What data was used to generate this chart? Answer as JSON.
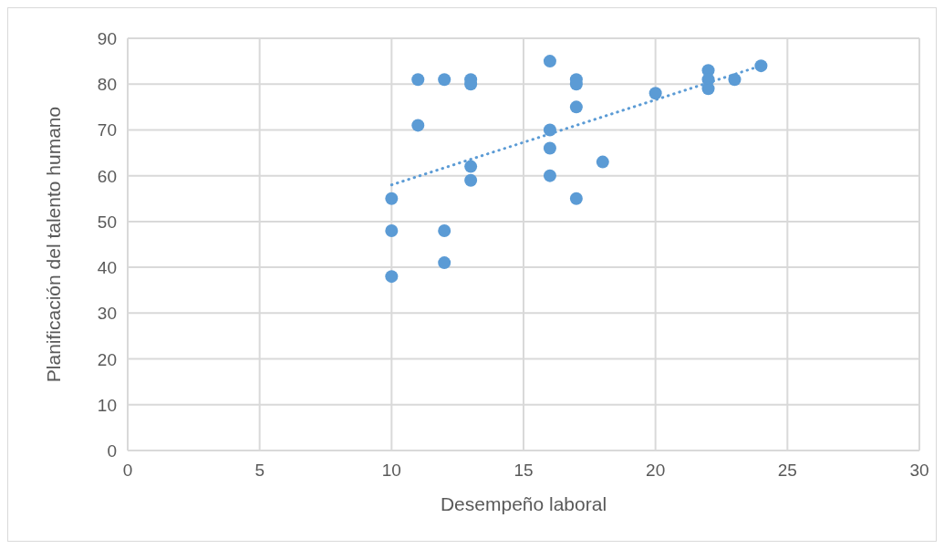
{
  "chart_data": {
    "type": "scatter",
    "xlabel": "Desempeño laboral",
    "ylabel": "Planificación del talento humano",
    "xlim": [
      0,
      30
    ],
    "xticks": [
      0,
      5,
      10,
      15,
      20,
      25,
      30
    ],
    "ylim": [
      0,
      90
    ],
    "yticks": [
      0,
      10,
      20,
      30,
      40,
      50,
      60,
      70,
      80,
      90
    ],
    "grid": true,
    "series": [
      {
        "color": "#5b9bd5",
        "marker": "circle",
        "x": [
          10,
          10,
          10,
          11,
          11,
          12,
          12,
          12,
          13,
          13,
          13,
          13,
          16,
          16,
          16,
          16,
          17,
          17,
          17,
          17,
          18,
          20,
          22,
          22,
          22,
          23,
          24
        ],
        "values": [
          55,
          48,
          38,
          81,
          71,
          81,
          48,
          41,
          81,
          80,
          62,
          59,
          85,
          70,
          66,
          60,
          81,
          80,
          75,
          55,
          63,
          78,
          83,
          81,
          79,
          81,
          84
        ]
      },
      {
        "type": "line",
        "color": "#5b9bd5",
        "marker": "none",
        "line_style": "dotted",
        "x": [
          10,
          24
        ],
        "values": [
          58,
          84
        ]
      }
    ]
  }
}
